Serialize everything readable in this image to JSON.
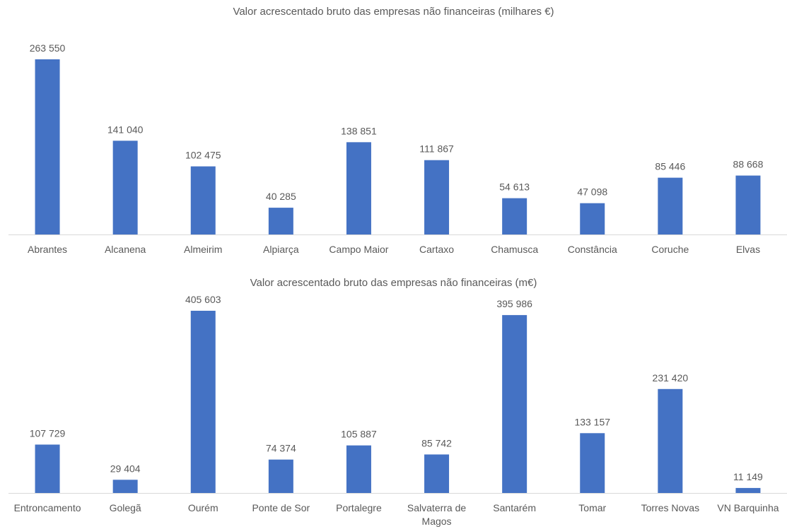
{
  "chart_data": [
    {
      "type": "bar",
      "title": "Valor acrescentado bruto das empresas não financeiras (milhares €)",
      "categories": [
        "Abrantes",
        "Alcanena",
        "Almeirim",
        "Alpiarça",
        "Campo Maior",
        "Cartaxo",
        "Chamusca",
        "Constância",
        "Coruche",
        "Elvas"
      ],
      "values": [
        263550,
        141040,
        102475,
        40285,
        138851,
        111867,
        54613,
        47098,
        85446,
        88668
      ],
      "labels": [
        "263 550",
        "141 040",
        "102 475",
        "40 285",
        "138 851",
        "111 867",
        "54 613",
        "47 098",
        "85 446",
        "88 668"
      ],
      "ylim": [
        0,
        263550
      ],
      "grid": false,
      "legend": "none",
      "bar_color": "#4472C4"
    },
    {
      "type": "bar",
      "title": "Valor acrescentado bruto das empresas não financeiras (m€)",
      "categories": [
        "Entroncamento",
        "Golegã",
        "Ourém",
        "Ponte de Sor",
        "Portalegre",
        "Salvaterra de Magos",
        "Santarém",
        "Tomar",
        "Torres Novas",
        "VN Barquinha"
      ],
      "category_lines": [
        [
          "Entroncamento"
        ],
        [
          "Golegã"
        ],
        [
          "Ourém"
        ],
        [
          "Ponte de Sor"
        ],
        [
          "Portalegre"
        ],
        [
          "Salvaterra de",
          "Magos"
        ],
        [
          "Santarém"
        ],
        [
          "Tomar"
        ],
        [
          "Torres Novas"
        ],
        [
          "VN Barquinha"
        ]
      ],
      "values": [
        107729,
        29404,
        405603,
        74374,
        105887,
        85742,
        395986,
        133157,
        231420,
        11149
      ],
      "labels": [
        "107 729",
        "29 404",
        "405 603",
        "74 374",
        "105 887",
        "85 742",
        "395 986",
        "133 157",
        "231 420",
        "11 149"
      ],
      "ylim": [
        0,
        405603
      ],
      "grid": false,
      "legend": "none",
      "bar_color": "#4472C4"
    }
  ]
}
